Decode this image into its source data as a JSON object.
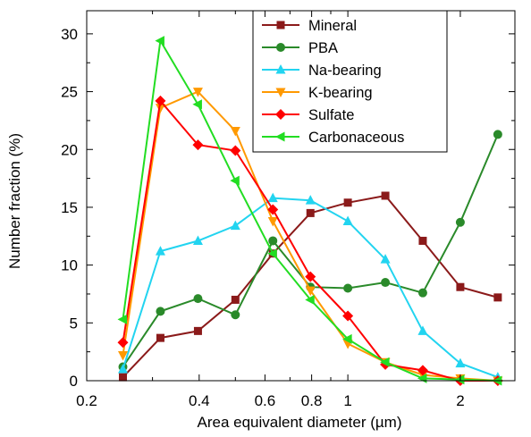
{
  "chart_data": {
    "type": "line",
    "title": "",
    "xlabel": "Area equivalent diameter (µm)",
    "ylabel": "Number fraction (%)",
    "xscale": "log",
    "xlim": [
      0.2,
      2.8
    ],
    "ylim": [
      0,
      32
    ],
    "xticks": [
      {
        "value": 0.2,
        "label": "0.2"
      },
      {
        "value": 0.4,
        "label": "0.4"
      },
      {
        "value": 0.6,
        "label": "0.6"
      },
      {
        "value": 0.8,
        "label": "0.8"
      },
      {
        "value": 1,
        "label": "1"
      },
      {
        "value": 2,
        "label": "2"
      }
    ],
    "xminor": [
      0.3,
      0.5,
      0.7,
      0.9
    ],
    "yticks": [
      {
        "value": 0,
        "label": "0"
      },
      {
        "value": 5,
        "label": "5"
      },
      {
        "value": 10,
        "label": "10"
      },
      {
        "value": 15,
        "label": "15"
      },
      {
        "value": 20,
        "label": "20"
      },
      {
        "value": 25,
        "label": "25"
      },
      {
        "value": 30,
        "label": "30"
      }
    ],
    "grid": false,
    "legend_position": "top-right",
    "x": [
      0.25,
      0.315,
      0.397,
      0.5,
      0.63,
      0.794,
      1.0,
      1.26,
      1.587,
      2.0,
      2.52
    ],
    "series": [
      {
        "name": "Mineral",
        "marker": "square",
        "color": "#8b1a1a",
        "values": [
          0.3,
          3.7,
          4.3,
          7.0,
          11.0,
          14.5,
          15.4,
          16.0,
          12.1,
          8.1,
          7.2
        ]
      },
      {
        "name": "PBA",
        "marker": "circle",
        "color": "#2a8a2a",
        "values": [
          1.2,
          6.0,
          7.1,
          5.7,
          12.1,
          8.1,
          8.0,
          8.5,
          7.6,
          13.7,
          21.3
        ]
      },
      {
        "name": "Na-bearing",
        "marker": "triangle-up",
        "color": "#22d4f0",
        "values": [
          1.0,
          11.2,
          12.1,
          13.4,
          15.8,
          15.6,
          13.8,
          10.5,
          4.3,
          1.5,
          0.3
        ]
      },
      {
        "name": "K-bearing",
        "marker": "triangle-down",
        "color": "#ff9900",
        "values": [
          2.2,
          23.6,
          25.0,
          21.6,
          13.8,
          7.8,
          3.2,
          1.6,
          0.5,
          0.2,
          0.0
        ]
      },
      {
        "name": "Sulfate",
        "marker": "diamond",
        "color": "#ff0000",
        "values": [
          3.3,
          24.2,
          20.4,
          19.9,
          14.8,
          9.0,
          5.6,
          1.4,
          0.9,
          0.0,
          0.0
        ]
      },
      {
        "name": "Carbonaceous",
        "marker": "triangle-left",
        "color": "#22dd22",
        "values": [
          5.3,
          29.4,
          23.9,
          17.3,
          11.0,
          7.0,
          3.6,
          1.6,
          0.2,
          0.1,
          0.0
        ]
      }
    ]
  }
}
